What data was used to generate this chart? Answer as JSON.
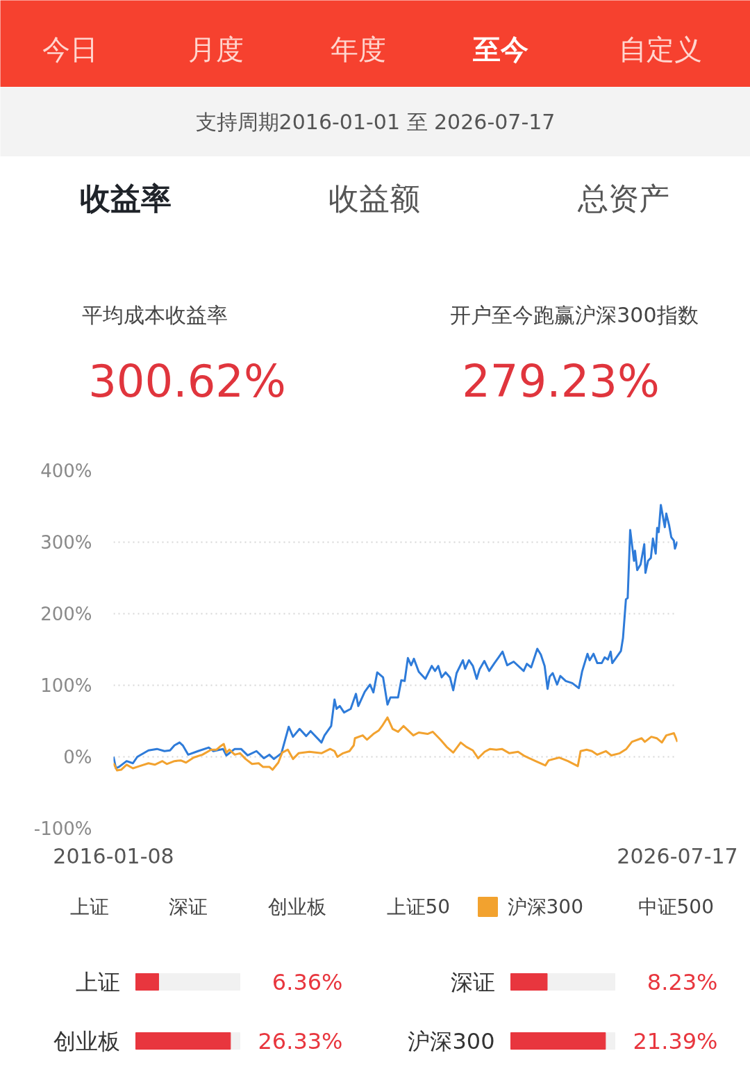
{
  "chart_data": [
    {
      "type": "other",
      "annotations": [
        "今日",
        "月度",
        "年度",
        "至今",
        "自定义",
        "支持周期2016-01-01 至 2026-07-17",
        "收益率",
        "收益额",
        "总资产",
        "平均成本收益率",
        "开户至今跑赢沪深300指数",
        "300.62%",
        "279.23%"
      ]
    },
    {
      "type": "line",
      "xlim": [
        "2016-01-08",
        "2026-07-17"
      ],
      "xticks": [
        "2016-01-08",
        "2026-07-17"
      ],
      "ylim": [
        -100,
        400
      ],
      "yticks": [
        {
          "value": -100,
          "label": "-100%"
        },
        {
          "value": 0,
          "label": "0%"
        },
        {
          "value": 100,
          "label": "100%"
        },
        {
          "value": 200,
          "label": "200%"
        },
        {
          "value": 300,
          "label": "300%"
        },
        {
          "value": 400,
          "label": "400%"
        }
      ],
      "grid": "y",
      "legend": "bottom",
      "line_style": "solid",
      "annotations": [
        "上证",
        "深证",
        "创业板",
        "上证50",
        "中证500"
      ],
      "series": [
        {
          "color": "#2e7bd9",
          "x": [
            "2016-01-08",
            "2016-01-24",
            "2016-02-15",
            "2016-04-06",
            "2016-05-19",
            "2016-06-18",
            "2016-09-02",
            "2016-10-30",
            "2016-12-20",
            "2017-01-27",
            "2017-02-26",
            "2017-04-02",
            "2017-04-24",
            "2017-05-31",
            "2017-08-06",
            "2017-10-18",
            "2017-11-18",
            "2018-01-01",
            "2018-01-23",
            "2018-02-15",
            "2018-04-13",
            "2018-05-26",
            "2018-07-10",
            "2018-09-08",
            "2018-10-29",
            "2018-12-05",
            "2019-01-05",
            "2019-02-25",
            "2019-04-16",
            "2019-05-15",
            "2019-06-29",
            "2019-08-13",
            "2019-09-12",
            "2019-11-25",
            "2019-12-16",
            "2020-01-30",
            "2020-02-22",
            "2020-03-07",
            "2020-03-29",
            "2020-04-27",
            "2020-06-11",
            "2020-07-17",
            "2020-08-02",
            "2020-09-15",
            "2020-10-21",
            "2020-11-13",
            "2020-12-09",
            "2021-01-18",
            "2021-02-17",
            "2021-03-09",
            "2021-04-30",
            "2021-05-22",
            "2021-06-14",
            "2021-07-06",
            "2021-07-28",
            "2021-08-16",
            "2021-09-18",
            "2021-11-02",
            "2021-12-16",
            "2022-01-07",
            "2022-01-29",
            "2022-02-21",
            "2022-03-20",
            "2022-04-19",
            "2022-05-11",
            "2022-06-03",
            "2022-07-16",
            "2022-07-31",
            "2022-08-26",
            "2022-09-22",
            "2022-10-18",
            "2022-11-06",
            "2022-12-09",
            "2023-01-11",
            "2023-02-16",
            "2023-03-16",
            "2023-04-12",
            "2023-05-14",
            "2023-06-27",
            "2023-09-03",
            "2023-09-25",
            "2023-10-24",
            "2023-12-05",
            "2023-12-29",
            "2024-01-24",
            "2024-02-13",
            "2024-02-27",
            "2024-03-19",
            "2024-04-18",
            "2024-05-10",
            "2024-06-16",
            "2024-07-30",
            "2024-09-13",
            "2024-10-05",
            "2024-11-11",
            "2024-11-26",
            "2024-12-22",
            "2025-01-17",
            "2025-02-16",
            "2025-03-08",
            "2025-03-30",
            "2025-04-18",
            "2025-04-29",
            "2025-06-27",
            "2025-07-11",
            "2025-07-31",
            "2025-08-12",
            "2025-08-29",
            "2025-09-24",
            "2025-10-01",
            "2025-10-16",
            "2025-11-08",
            "2025-12-03",
            "2025-12-11",
            "2025-12-29",
            "2026-01-17",
            "2026-01-31",
            "2026-02-19",
            "2026-03-01",
            "2026-03-11",
            "2026-03-26",
            "2026-04-22",
            "2026-05-02",
            "2026-05-21",
            "2026-06-05",
            "2026-06-23",
            "2026-06-30",
            "2026-07-17"
          ],
          "values": [
            0,
            -16,
            -14,
            -6,
            -9,
            0,
            9,
            11,
            8,
            9,
            16,
            20,
            16,
            3,
            8,
            13,
            8,
            10,
            11,
            2,
            11,
            11,
            2,
            8,
            -2,
            3,
            -3,
            5,
            42,
            28,
            39,
            29,
            36,
            20,
            30,
            43,
            80,
            67,
            71,
            62,
            67,
            88,
            71,
            91,
            101,
            90,
            118,
            111,
            73,
            83,
            83,
            107,
            106,
            138,
            128,
            137,
            119,
            109,
            127,
            120,
            127,
            111,
            118,
            111,
            93,
            117,
            135,
            123,
            135,
            127,
            109,
            122,
            134,
            120,
            131,
            139,
            147,
            128,
            133,
            120,
            130,
            125,
            151,
            143,
            127,
            95,
            112,
            117,
            101,
            113,
            106,
            103,
            96,
            119,
            144,
            135,
            144,
            131,
            131,
            139,
            136,
            147,
            131,
            148,
            166,
            220,
            222,
            317,
            274,
            288,
            261,
            269,
            297,
            257,
            274,
            278,
            305,
            284,
            320,
            314,
            352,
            321,
            340,
            324,
            307,
            302,
            291,
            301
          ]
        },
        {
          "name": "沪深300",
          "color": "#f2a22f",
          "x": [
            "2016-01-08",
            "2016-02-01",
            "2016-02-29",
            "2016-04-06",
            "2016-05-19",
            "2016-07-03",
            "2016-09-02",
            "2016-10-15",
            "2016-12-06",
            "2017-01-05",
            "2017-02-26",
            "2017-04-10",
            "2017-05-16",
            "2017-07-07",
            "2017-09-05",
            "2017-11-03",
            "2017-12-10",
            "2018-01-01",
            "2018-01-28",
            "2018-02-15",
            "2018-03-07",
            "2018-04-13",
            "2018-05-19",
            "2018-06-26",
            "2018-08-09",
            "2018-09-23",
            "2018-10-22",
            "2018-12-05",
            "2018-12-27",
            "2019-02-04",
            "2019-03-03",
            "2019-04-10",
            "2019-05-15",
            "2019-06-22",
            "2019-09-04",
            "2019-11-25",
            "2020-01-23",
            "2020-02-22",
            "2020-03-13",
            "2020-04-20",
            "2020-06-03",
            "2020-07-02",
            "2020-07-10",
            "2020-09-01",
            "2020-09-30",
            "2020-11-13",
            "2020-12-20",
            "2021-01-11",
            "2021-02-17",
            "2021-03-24",
            "2021-04-30",
            "2021-06-06",
            "2021-08-12",
            "2021-09-18",
            "2021-11-17",
            "2021-12-23",
            "2022-02-13",
            "2022-03-27",
            "2022-05-11",
            "2022-07-01",
            "2022-08-08",
            "2022-09-22",
            "2022-10-28",
            "2022-12-11",
            "2023-01-17",
            "2023-03-01",
            "2023-04-08",
            "2023-05-29",
            "2023-07-27",
            "2023-09-10",
            "2023-11-23",
            "2024-01-29",
            "2024-02-20",
            "2024-05-03",
            "2024-07-01",
            "2024-09-06",
            "2024-09-25",
            "2024-11-05",
            "2024-12-11",
            "2025-01-17",
            "2025-03-16",
            "2025-04-22",
            "2025-06-19",
            "2025-08-03",
            "2025-09-10",
            "2025-11-15",
            "2025-12-07",
            "2026-01-20",
            "2026-02-26",
            "2026-04-02",
            "2026-05-02",
            "2026-06-23",
            "2026-07-17"
          ],
          "values": [
            -9,
            -19,
            -18,
            -11,
            -16,
            -13,
            -9,
            -11,
            -6,
            -10,
            -6,
            -5,
            -8,
            -1,
            3,
            10,
            10,
            14,
            18,
            6,
            10,
            3,
            5,
            -3,
            -10,
            -9,
            -14,
            -14,
            -18,
            -8,
            6,
            10,
            -3,
            5,
            7,
            5,
            11,
            8,
            0,
            5,
            8,
            16,
            26,
            30,
            24,
            32,
            37,
            43,
            55,
            39,
            35,
            43,
            30,
            34,
            32,
            35,
            24,
            14,
            6,
            20,
            14,
            9,
            -2,
            7,
            11,
            10,
            11,
            5,
            7,
            1,
            -6,
            -12,
            -5,
            -1,
            -6,
            -13,
            8,
            10,
            8,
            3,
            8,
            2,
            5,
            11,
            21,
            26,
            21,
            28,
            26,
            20,
            30,
            33,
            21
          ]
        }
      ]
    },
    {
      "type": "bar",
      "orientation": "horizontal",
      "categories": [
        "上证",
        "创业板"
      ],
      "values": [
        6.36,
        26.33
      ],
      "value_labels": [
        "6.36%",
        "26.33%"
      ],
      "color": "#e8363e",
      "tick_labels": "y"
    },
    {
      "type": "bar",
      "orientation": "horizontal",
      "categories": [
        "深证",
        "沪深300"
      ],
      "values": [
        8.23,
        21.39
      ],
      "value_labels": [
        "8.23%",
        "21.39%"
      ],
      "color": "#e8363e",
      "tick_labels": "y"
    }
  ]
}
